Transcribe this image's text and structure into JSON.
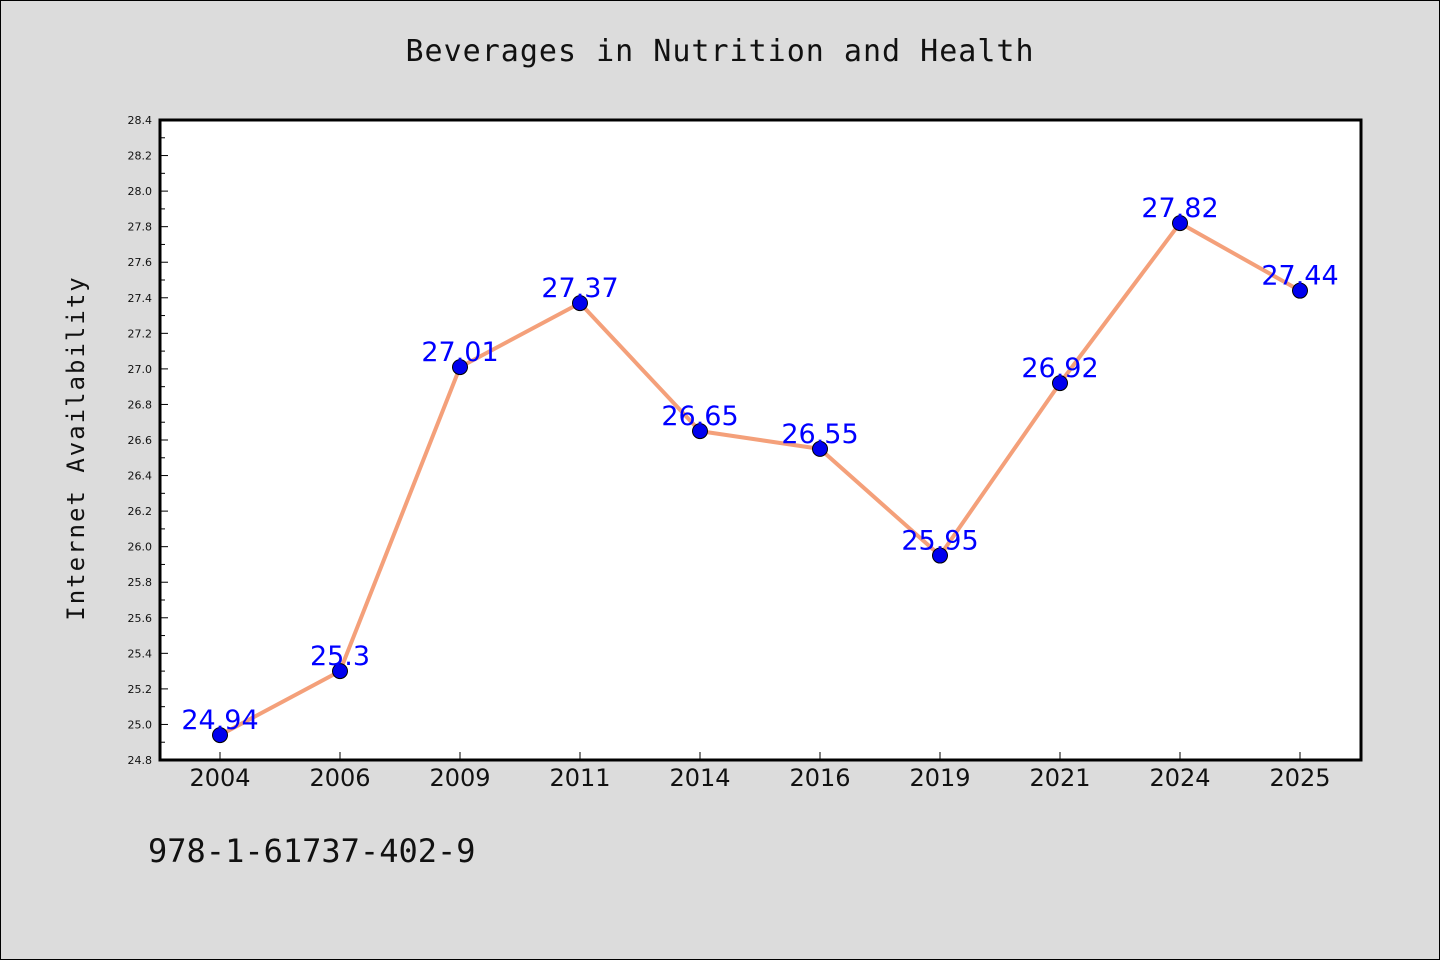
{
  "chart_data": {
    "type": "line",
    "title": "Beverages in Nutrition and Health",
    "xlabel": "",
    "ylabel": "Internet Availability",
    "categories": [
      "2004",
      "2006",
      "2009",
      "2011",
      "2014",
      "2016",
      "2019",
      "2021",
      "2024",
      "2025"
    ],
    "values": [
      24.94,
      25.3,
      27.01,
      27.37,
      26.65,
      26.55,
      25.95,
      26.92,
      27.82,
      27.44
    ],
    "data_labels": [
      "24.94",
      "25.3",
      "27.01",
      "27.37",
      "26.65",
      "26.55",
      "25.95",
      "26.92",
      "27.82",
      "27.44"
    ],
    "ylim": [
      24.8,
      28.4
    ],
    "yticks": [
      "24.8",
      "25.0",
      "25.2",
      "25.4",
      "25.6",
      "25.8",
      "26.0",
      "26.2",
      "26.4",
      "26.6",
      "26.8",
      "27.0",
      "27.2",
      "27.4",
      "27.6",
      "27.8",
      "28.0",
      "28.2",
      "28.4"
    ],
    "grid": false,
    "line_color": "#f4a07a",
    "marker_color": "#0000ee",
    "label_color": "#0000ff"
  },
  "footer": {
    "text": "978-1-61737-402-9"
  }
}
